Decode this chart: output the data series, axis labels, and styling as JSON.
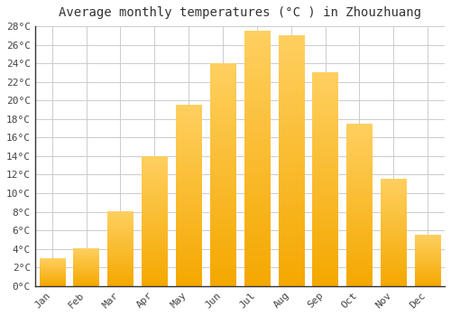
{
  "title": "Average monthly temperatures (°C ) in Zhouzhuang",
  "months": [
    "Jan",
    "Feb",
    "Mar",
    "Apr",
    "May",
    "Jun",
    "Jul",
    "Aug",
    "Sep",
    "Oct",
    "Nov",
    "Dec"
  ],
  "temperatures": [
    3,
    4,
    8,
    14,
    19.5,
    24,
    27.5,
    27,
    23,
    17.5,
    11.5,
    5.5
  ],
  "bar_color_bottom": "#F5A800",
  "bar_color_top": "#FFD060",
  "bar_edge_color": "#AAAAAA",
  "background_color": "#FFFFFF",
  "plot_bg_color": "#FFFFFF",
  "grid_color": "#CCCCCC",
  "ylim": [
    0,
    28
  ],
  "ytick_step": 2,
  "title_fontsize": 10,
  "tick_fontsize": 8,
  "tick_font_family": "monospace"
}
